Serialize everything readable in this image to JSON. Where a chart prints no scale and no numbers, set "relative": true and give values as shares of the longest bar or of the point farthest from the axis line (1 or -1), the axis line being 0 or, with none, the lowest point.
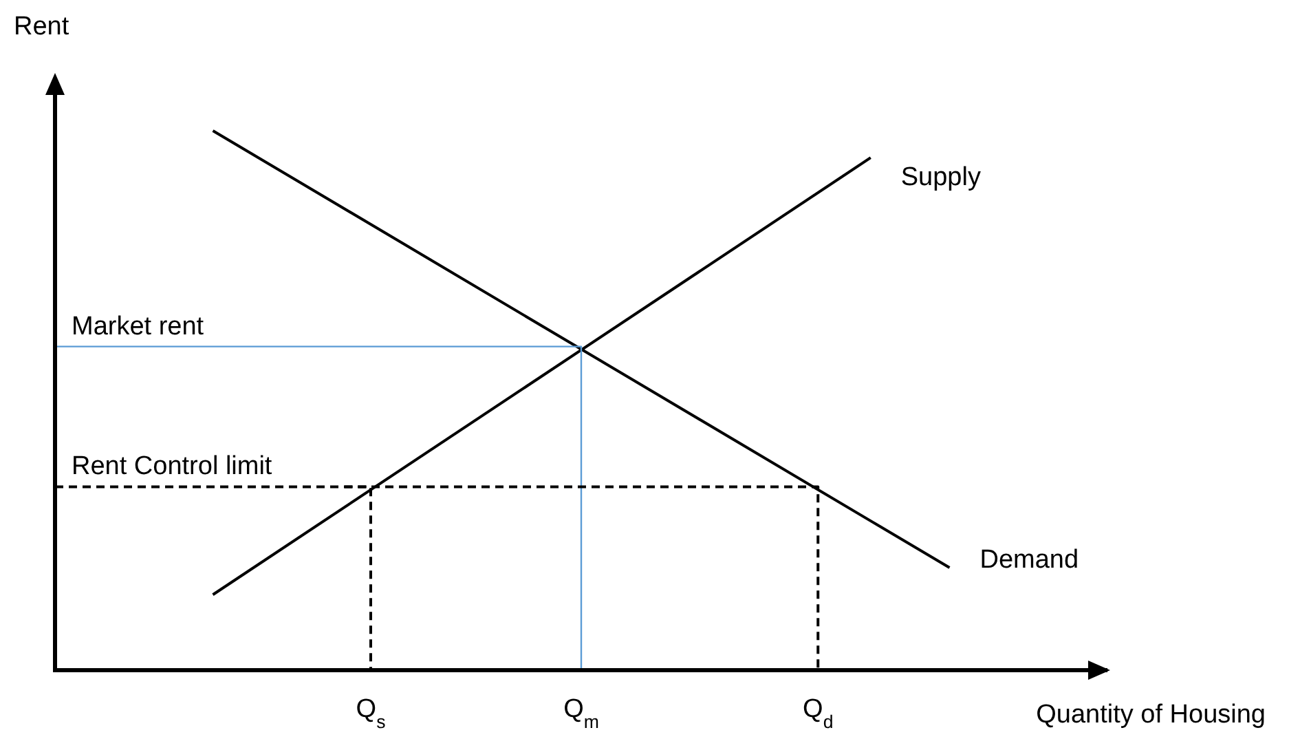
{
  "chart_data": {
    "type": "line",
    "relative": true,
    "xlabel": "Quantity of Housing",
    "ylabel": "Rent",
    "legend": false,
    "marker": "none",
    "line_style": "solid",
    "categories": [
      null,
      null,
      null,
      null,
      null,
      null,
      null,
      null,
      null,
      null,
      null,
      null,
      "Q$_{s}$",
      null,
      null,
      null,
      null,
      null,
      null,
      null,
      "Q$_{m}$",
      null,
      null,
      null,
      null,
      null,
      null,
      null,
      null,
      "Q$_{d}$",
      null,
      null,
      null,
      null,
      null,
      null,
      null,
      null,
      null,
      null,
      null
    ],
    "series": [
      {
        "name": "Supply",
        "color": "#000000",
        "values": [
          null,
          null,
          null,
          null,
          null,
          null,
          0.14,
          null,
          null,
          null,
          null,
          null,
          null,
          null,
          null,
          null,
          null,
          null,
          null,
          null,
          null,
          null,
          null,
          null,
          null,
          null,
          null,
          null,
          null,
          null,
          null,
          0.95,
          null,
          null,
          null,
          null,
          null,
          null,
          null,
          null,
          null
        ]
      },
      {
        "name": "Demand",
        "color": "#000000",
        "values": [
          null,
          null,
          null,
          null,
          null,
          null,
          1,
          null,
          null,
          null,
          null,
          null,
          null,
          null,
          null,
          null,
          null,
          null,
          null,
          null,
          null,
          null,
          null,
          null,
          null,
          null,
          null,
          null,
          null,
          null,
          null,
          null,
          null,
          null,
          0.19,
          null,
          null,
          null,
          null,
          null,
          null
        ]
      },
      {
        "name": "Market rent",
        "type": "step",
        "color": "#5b9bd5",
        "values": [
          0.6,
          null,
          null,
          null,
          null,
          null,
          null,
          null,
          null,
          null,
          null,
          null,
          null,
          null,
          null,
          null,
          null,
          null,
          null,
          null,
          0,
          null,
          null,
          null,
          null,
          null,
          null,
          null,
          null,
          null,
          null,
          null,
          null,
          null,
          null,
          null,
          null,
          null,
          null,
          null,
          null
        ]
      },
      {
        "name": "Rent Control limit",
        "type": "step",
        "color": "#000000",
        "line_style": "dashed",
        "values": [
          0.34,
          null,
          null,
          null,
          null,
          null,
          null,
          null,
          null,
          null,
          null,
          null,
          null,
          null,
          null,
          null,
          null,
          null,
          null,
          null,
          null,
          null,
          null,
          null,
          null,
          null,
          null,
          null,
          null,
          0,
          null,
          null,
          null,
          null,
          null,
          null,
          null,
          null,
          null,
          null,
          null
        ]
      },
      {
        "type": "step",
        "color": "#000000",
        "line_style": "dashed",
        "values": [
          null,
          null,
          null,
          null,
          null,
          null,
          null,
          null,
          null,
          null,
          null,
          0.34,
          0,
          null,
          null,
          null,
          null,
          null,
          null,
          null,
          null,
          null,
          null,
          null,
          null,
          null,
          null,
          null,
          null,
          null,
          null,
          null,
          null,
          null,
          null,
          null,
          null,
          null,
          null,
          null,
          null
        ]
      }
    ]
  }
}
